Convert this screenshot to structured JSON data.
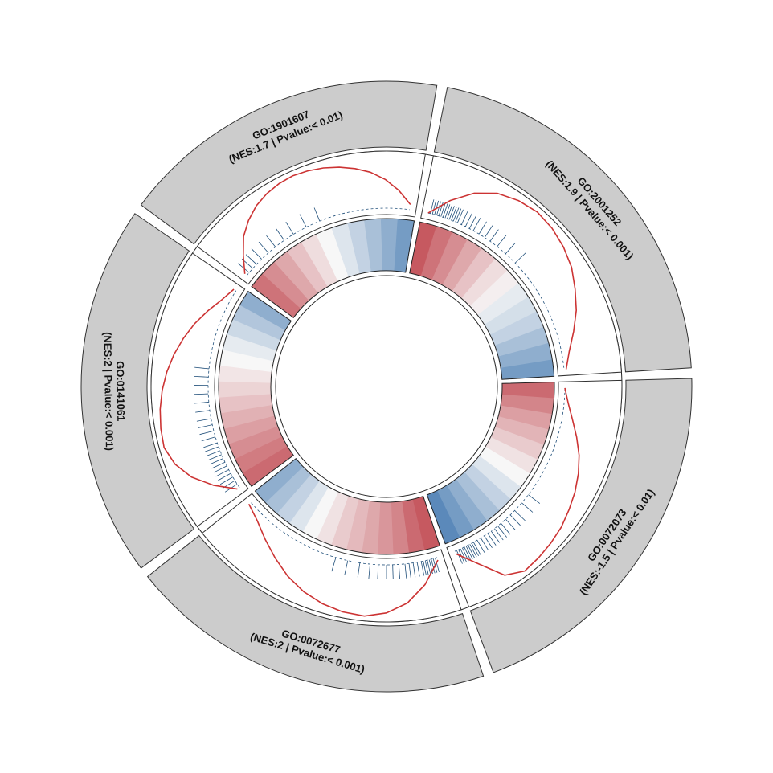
{
  "chart_data": {
    "type": "circular-gsea",
    "title": "",
    "segments": [
      {
        "id": "GO:2001252",
        "stats": "(NES:1.9 | Pvalue:< 0.001)",
        "nes": 1.9,
        "heat": [
          0.9,
          0.75,
          0.6,
          0.45,
          0.3,
          0.15,
          0.05,
          -0.1,
          -0.2,
          -0.3,
          -0.45,
          -0.6,
          -0.75
        ],
        "es_curve": [
          0,
          0.35,
          0.65,
          0.85,
          0.95,
          1.0,
          0.97,
          0.9,
          0.8,
          0.65,
          0.5,
          0.32,
          0.15,
          0.04
        ],
        "hits": [
          0.01,
          0.02,
          0.03,
          0.04,
          0.05,
          0.06,
          0.07,
          0.08,
          0.09,
          0.1,
          0.11,
          0.12,
          0.13,
          0.14,
          0.16,
          0.18,
          0.2,
          0.22,
          0.25,
          0.28,
          0.31,
          0.35,
          0.4,
          0.46
        ]
      },
      {
        "id": "GO:0072073",
        "stats": "(NES:-1.5 | Pvalue:< 0.01)",
        "nes": -1.5,
        "heat": [
          0.8,
          0.65,
          0.5,
          0.38,
          0.25,
          0.12,
          0.0,
          -0.15,
          -0.3,
          -0.45,
          -0.6,
          -0.75,
          -0.9
        ],
        "es_curve": [
          0,
          0.08,
          0.2,
          0.35,
          0.5,
          0.62,
          0.72,
          0.8,
          0.88,
          0.93,
          0.97,
          1.0,
          0.85,
          0.4,
          0.05
        ],
        "hits": [
          0.55,
          0.6,
          0.65,
          0.68,
          0.71,
          0.74,
          0.76,
          0.78,
          0.8,
          0.82,
          0.84,
          0.86,
          0.88,
          0.9,
          0.91,
          0.92,
          0.93,
          0.94,
          0.95,
          0.96,
          0.97,
          0.98,
          0.99
        ]
      },
      {
        "id": "GO:0072677",
        "stats": "(NES:2 | Pvalue:< 0.001)",
        "nes": 2.0,
        "heat": [
          0.9,
          0.8,
          0.65,
          0.55,
          0.45,
          0.35,
          0.25,
          0.12,
          0.0,
          -0.15,
          -0.3,
          -0.45,
          -0.6
        ],
        "es_curve": [
          0.05,
          0.45,
          0.75,
          0.92,
          1.0,
          0.98,
          0.92,
          0.82,
          0.68,
          0.5,
          0.32,
          0.15,
          0.05
        ],
        "hits": [
          0.01,
          0.02,
          0.03,
          0.04,
          0.05,
          0.06,
          0.07,
          0.08,
          0.1,
          0.12,
          0.14,
          0.16,
          0.19,
          0.22,
          0.25,
          0.29,
          0.33,
          0.38,
          0.44,
          0.5
        ]
      },
      {
        "id": "GO:0141061",
        "stats": "(NES:2 | Pvalue:< 0.001)",
        "nes": 2.0,
        "heat": [
          0.8,
          0.7,
          0.6,
          0.5,
          0.4,
          0.3,
          0.2,
          0.1,
          0.0,
          -0.1,
          -0.25,
          -0.4,
          -0.6
        ],
        "es_curve": [
          0.05,
          0.4,
          0.7,
          0.9,
          1.0,
          0.98,
          0.94,
          0.88,
          0.8,
          0.7,
          0.58,
          0.45,
          0.3,
          0.15,
          0.05
        ],
        "hits": [
          0.02,
          0.04,
          0.06,
          0.08,
          0.1,
          0.12,
          0.14,
          0.16,
          0.18,
          0.2,
          0.22,
          0.24,
          0.27,
          0.3,
          0.33,
          0.36,
          0.4,
          0.44,
          0.48,
          0.52,
          0.56,
          0.6
        ]
      },
      {
        "id": "GO:1901607",
        "stats": "(NES:1.7 | Pvalue:< 0.01)",
        "nes": 1.7,
        "heat": [
          0.75,
          0.6,
          0.45,
          0.3,
          0.15,
          0.0,
          -0.15,
          -0.3,
          -0.45,
          -0.6,
          -0.75
        ],
        "es_curve": [
          0.05,
          0.3,
          0.55,
          0.72,
          0.85,
          0.93,
          0.98,
          1.0,
          0.98,
          0.94,
          0.88,
          0.8,
          0.7,
          0.55,
          0.35,
          0.1
        ],
        "hits": [
          0.02,
          0.05,
          0.08,
          0.12,
          0.17,
          0.22,
          0.28,
          0.34,
          0.42,
          0.5
        ]
      }
    ],
    "colors": {
      "pos": "#c0474f",
      "neg": "#4a7db3",
      "mid": "#f7f7f7",
      "band": "#cccccc",
      "curve": "#cc3333",
      "hit": "#1f4e79"
    }
  }
}
